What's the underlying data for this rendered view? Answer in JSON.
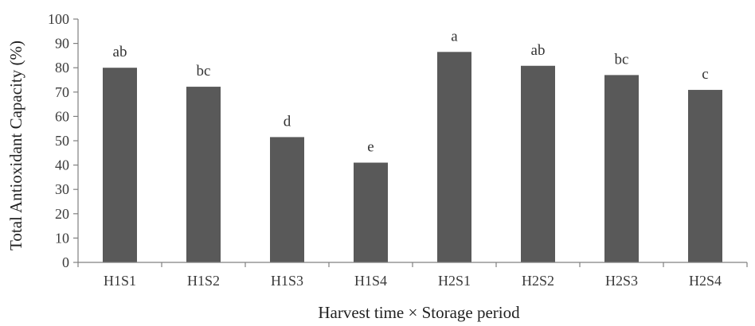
{
  "chart_data": {
    "type": "bar",
    "title": "",
    "xlabel": "Harvest time × Storage period",
    "ylabel": "Total Antioxidant Capacity (%)",
    "categories": [
      "H1S1",
      "H1S2",
      "H1S3",
      "H1S4",
      "H2S1",
      "H2S2",
      "H2S3",
      "H2S4"
    ],
    "values": [
      80,
      72.2,
      51.5,
      41,
      86.5,
      80.8,
      77,
      70.9
    ],
    "bar_labels": [
      "ab",
      "bc",
      "d",
      "e",
      "a",
      "ab",
      "bc",
      "c"
    ],
    "ylim": [
      0,
      100
    ],
    "yticks": [
      0,
      10,
      20,
      30,
      40,
      50,
      60,
      70,
      80,
      90,
      100
    ],
    "grid": false,
    "legend": "none",
    "bar_color": "#595959",
    "axis_color": "#808080"
  }
}
